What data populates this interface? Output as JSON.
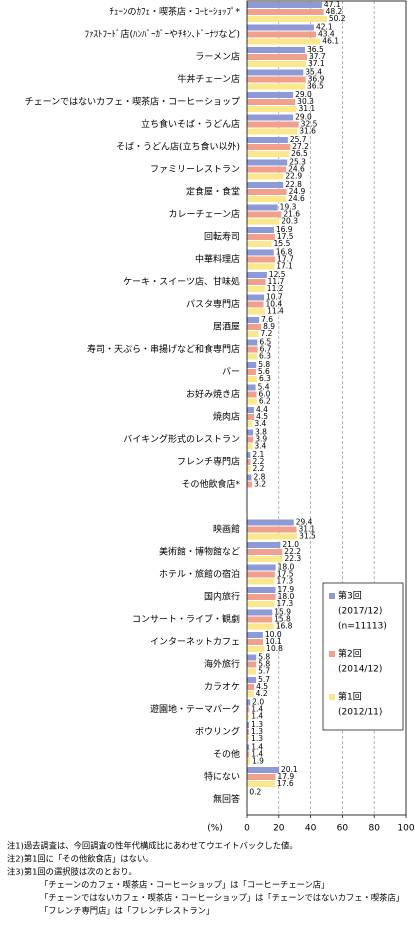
{
  "chart_data": {
    "type": "bar",
    "orientation": "horizontal",
    "categories": [
      "ﾁｪｰﾝのｶﾌｪ・喫茶店・ｺｰﾋｰｼｮｯﾌﾟ*",
      "ﾌｧｽﾄﾌｰﾄﾞ店(ﾊﾝﾊﾞｰｶﾞｰやﾁｷﾝ､ﾄﾞｰﾅﾂなど)",
      "ラーメン店",
      "牛丼チェーン店",
      "チェーンではないカフェ・喫茶店・コーヒーショップ",
      "立ち食いそば・うどん店",
      "そば・うどん店(立ち食い以外)",
      "ファミリーレストラン",
      "定食屋・食堂",
      "カレーチェーン店",
      "回転寿司",
      "中華料理店",
      "ケーキ・スイーツ店、甘味処",
      "パスタ専門店",
      "居酒屋",
      "寿司・天ぷら・串揚げなど和食専門店",
      "バー",
      "お好み焼き店",
      "焼肉店",
      "バイキング形式のレストラン",
      "フレンチ専門店",
      "その他飲食店*",
      null,
      "映画館",
      "美術館・博物館など",
      "ホテル・旅館の宿泊",
      "国内旅行",
      "コンサート・ライブ・観劇",
      "インターネットカフェ",
      "海外旅行",
      "カラオケ",
      "遊園地・テーマパーク",
      "ボウリング",
      "その他",
      "特にない",
      "無回答"
    ],
    "series": [
      {
        "name": "第3回",
        "detail": [
          "(2017/12)",
          "(n=11113)"
        ],
        "color": "#8e9ad6",
        "values": [
          47.1,
          42.1,
          36.5,
          35.4,
          29.0,
          29.0,
          25.7,
          25.3,
          22.8,
          19.3,
          16.9,
          16.8,
          12.5,
          10.7,
          7.6,
          6.5,
          5.8,
          5.4,
          4.4,
          3.8,
          2.1,
          2.8,
          null,
          29.4,
          21.0,
          18.0,
          17.9,
          15.9,
          10.0,
          5.8,
          5.7,
          2.0,
          1.3,
          1.4,
          20.1,
          0.2
        ],
        "value_labels": [
          "47.1",
          "42.1",
          "36.5",
          "35.4",
          "29.0",
          "29.0",
          "25.7",
          "25.3",
          "22.8",
          "19.3",
          "16.9",
          "16.8",
          "12.5",
          "10.7",
          "7.6",
          "6.5",
          "5.8",
          "5.4",
          "4.4",
          "3.8",
          "2.1",
          "2.8",
          null,
          "29.4",
          "21.0",
          "18.0",
          "17.9",
          "15.9",
          "10.0",
          "5.8",
          "5.7",
          "2.0",
          "1.3",
          "1.4",
          "20.1",
          "0.2"
        ]
      },
      {
        "name": "第2回",
        "detail": [
          "(2014/12)"
        ],
        "color": "#f2a08e",
        "values": [
          48.2,
          43.4,
          37.7,
          36.9,
          30.3,
          32.5,
          27.2,
          24.6,
          24.9,
          21.6,
          17.5,
          17.7,
          11.7,
          10.4,
          8.9,
          6.7,
          5.6,
          6.0,
          4.5,
          3.9,
          2.2,
          3.2,
          null,
          31.1,
          22.2,
          17.5,
          18.0,
          15.8,
          10.1,
          5.8,
          4.5,
          1.4,
          1.3,
          1.4,
          17.9,
          null
        ],
        "value_labels": [
          "48.2",
          "43.4",
          "37.7",
          "36.9",
          "30.3",
          "32.5",
          "27.2",
          "24.6",
          "24.9",
          "21.6",
          "17.5",
          "17.7",
          "11.7",
          "10.4",
          "8.9",
          "6.7",
          "5.6",
          "6.0",
          "4.5",
          "3.9",
          "2.2",
          "3.2",
          null,
          "31.1",
          "22.2",
          "17.5",
          "18.0",
          "15.8",
          "10.1",
          "5.8",
          "4.5",
          "1.4",
          "1.3",
          "1.4",
          "17.9",
          null
        ]
      },
      {
        "name": "第1回",
        "detail": [
          "(2012/11)"
        ],
        "color": "#fbe78c",
        "values": [
          50.2,
          46.1,
          37.1,
          36.5,
          31.1,
          31.6,
          26.5,
          22.9,
          24.6,
          20.3,
          15.5,
          17.1,
          11.2,
          11.4,
          7.2,
          6.3,
          6.3,
          6.2,
          3.4,
          3.4,
          2.2,
          null,
          null,
          31.5,
          22.3,
          17.3,
          17.3,
          16.8,
          10.8,
          5.7,
          4.2,
          1.4,
          1.3,
          1.9,
          17.6,
          null
        ],
        "value_labels": [
          "50.2",
          "46.1",
          "37.1",
          "36.5",
          "31.1",
          "31.6",
          "26.5",
          "22.9",
          "24.6",
          "20.3",
          "15.5",
          "17.1",
          "11.2",
          "11.4",
          "7.2",
          "6.3",
          "6.3",
          "6.2",
          "3.4",
          "3.4",
          "2.2",
          null,
          null,
          "31.5",
          "22.3",
          "17.3",
          "17.3",
          "16.8",
          "10.8",
          "5.7",
          "4.2",
          "1.4",
          "1.3",
          "1.9",
          "17.6",
          null
        ]
      }
    ],
    "xlim": [
      0,
      100
    ],
    "xticks": [
      0,
      20,
      40,
      60,
      80,
      100
    ],
    "x_axis_label": "(%)",
    "grid": true,
    "notes": [
      "注1)過去調査は、今回調査の性年代構成比にあわせてウエイトバックした値。",
      "注2)第1回に「その他飲食店」はない。",
      "注3)第1回の選択肢は次のとおり。",
      "「チェーンのカフェ・喫茶店・コーヒーショップ」は「コーヒーチェーン店」",
      "「チェーンではないカフェ・喫茶店・コーヒーショップ」は「チェーンではないカフェ・喫茶店」",
      "「フレンチ専門店」は「フレンチレストラン」"
    ]
  }
}
